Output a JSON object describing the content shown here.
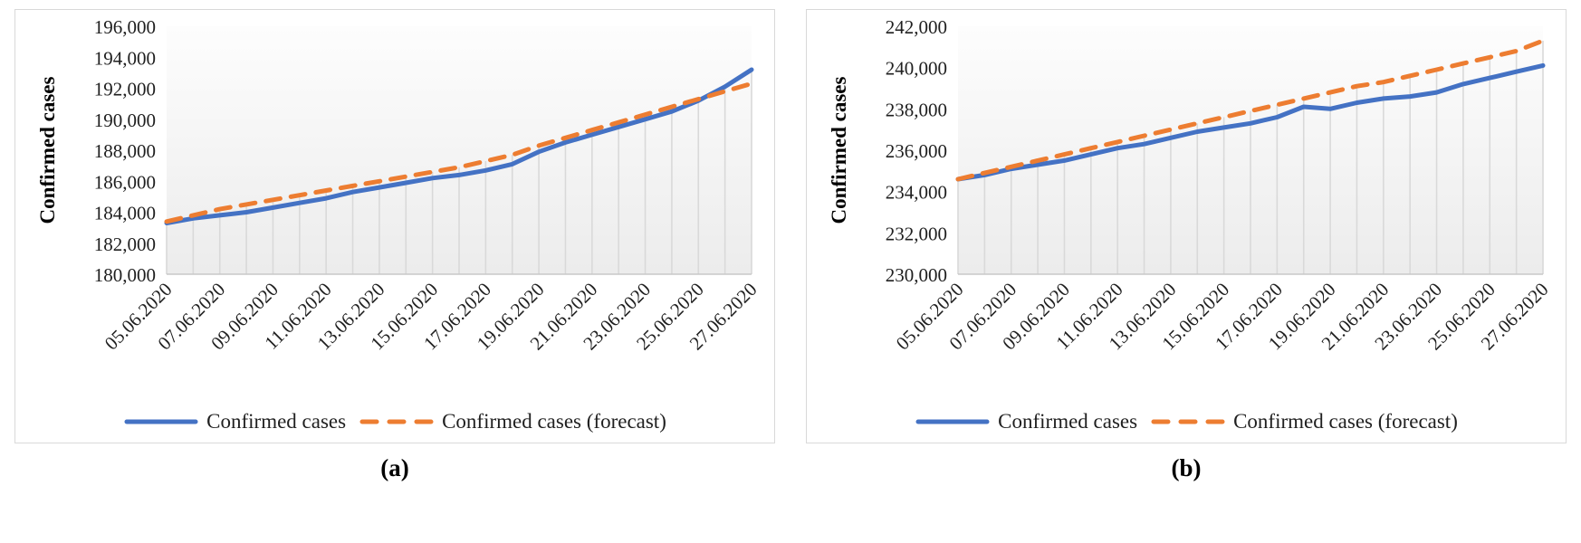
{
  "figure": {
    "captions": [
      "(a)",
      "(b)"
    ]
  },
  "legend": {
    "actual_label": "Confirmed cases",
    "forecast_label": "Confirmed cases (forecast)"
  },
  "colors": {
    "actual": "#4472C4",
    "forecast": "#ED7D31",
    "gridline": "#d9d9d9",
    "axis": "#c8c8c8"
  },
  "chart_data": [
    {
      "type": "line",
      "title": "",
      "xlabel": "",
      "ylabel": "Confirmed cases",
      "ylim": [
        180000,
        196000
      ],
      "ytick_step": 2000,
      "xtick_every": 2,
      "grid": "vertical-drop-lines",
      "legend_position": "bottom",
      "x": [
        "05.06.2020",
        "06.06.2020",
        "07.06.2020",
        "08.06.2020",
        "09.06.2020",
        "10.06.2020",
        "11.06.2020",
        "12.06.2020",
        "13.06.2020",
        "14.06.2020",
        "15.06.2020",
        "16.06.2020",
        "17.06.2020",
        "18.06.2020",
        "19.06.2020",
        "20.06.2020",
        "21.06.2020",
        "22.06.2020",
        "23.06.2020",
        "24.06.2020",
        "25.06.2020",
        "26.06.2020",
        "27.06.2020"
      ],
      "series": [
        {
          "name": "Confirmed cases",
          "style": "solid",
          "color": "#4472C4",
          "values": [
            183300,
            183600,
            183800,
            184000,
            184300,
            184600,
            184900,
            185300,
            185600,
            185900,
            186200,
            186400,
            186700,
            187100,
            187900,
            188500,
            189000,
            189500,
            190000,
            190500,
            191200,
            192100,
            193200
          ]
        },
        {
          "name": "Confirmed cases (forecast)",
          "style": "dashed",
          "color": "#ED7D31",
          "values": [
            183400,
            183800,
            184200,
            184500,
            184800,
            185100,
            185400,
            185700,
            186000,
            186300,
            186600,
            186900,
            187300,
            187700,
            188300,
            188800,
            189300,
            189800,
            190300,
            190800,
            191300,
            191800,
            192300
          ]
        }
      ]
    },
    {
      "type": "line",
      "title": "",
      "xlabel": "",
      "ylabel": "Confirmed cases",
      "ylim": [
        230000,
        242000
      ],
      "ytick_step": 2000,
      "xtick_every": 2,
      "grid": "vertical-drop-lines",
      "legend_position": "bottom",
      "x": [
        "05.06.2020",
        "06.06.2020",
        "07.06.2020",
        "08.06.2020",
        "09.06.2020",
        "10.06.2020",
        "11.06.2020",
        "12.06.2020",
        "13.06.2020",
        "14.06.2020",
        "15.06.2020",
        "16.06.2020",
        "17.06.2020",
        "18.06.2020",
        "19.06.2020",
        "20.06.2020",
        "21.06.2020",
        "22.06.2020",
        "23.06.2020",
        "24.06.2020",
        "25.06.2020",
        "26.06.2020",
        "27.06.2020"
      ],
      "series": [
        {
          "name": "Confirmed cases",
          "style": "solid",
          "color": "#4472C4",
          "values": [
            234600,
            234800,
            235100,
            235300,
            235500,
            235800,
            236100,
            236300,
            236600,
            236900,
            237100,
            237300,
            237600,
            238100,
            238000,
            238300,
            238500,
            238600,
            238800,
            239200,
            239500,
            239800,
            240100
          ]
        },
        {
          "name": "Confirmed cases (forecast)",
          "style": "dashed",
          "color": "#ED7D31",
          "values": [
            234600,
            234900,
            235200,
            235500,
            235800,
            236100,
            236400,
            236700,
            237000,
            237300,
            237600,
            237900,
            238200,
            238500,
            238800,
            239100,
            239300,
            239600,
            239900,
            240200,
            240500,
            240800,
            241300
          ]
        }
      ]
    }
  ]
}
